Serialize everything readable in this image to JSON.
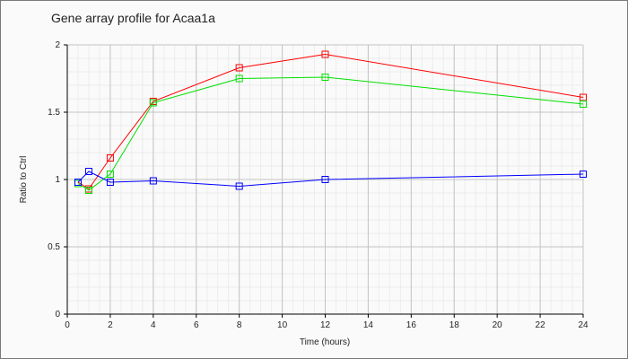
{
  "chart_data": {
    "type": "line",
    "title": "Gene array profile for Acaa1a",
    "xlabel": "Time (hours)",
    "ylabel": "Ratio to Ctrl",
    "xlim": [
      0,
      24
    ],
    "ylim": [
      0,
      2
    ],
    "xticks": [
      0,
      2,
      4,
      6,
      8,
      10,
      12,
      14,
      16,
      18,
      20,
      22,
      24
    ],
    "yticks": [
      0,
      0.5,
      1,
      1.5,
      2
    ],
    "ytick_labels": [
      "0",
      "0.5",
      "1",
      "1.5",
      "2"
    ],
    "grid": true,
    "legend": "none",
    "marker": "square",
    "x": [
      0.5,
      1,
      2,
      4,
      8,
      12,
      24
    ],
    "series": [
      {
        "color": "#ff0000",
        "values": [
          0.98,
          0.93,
          1.16,
          1.58,
          1.83,
          1.93,
          1.61
        ]
      },
      {
        "color": "#00e000",
        "values": [
          0.97,
          0.92,
          1.04,
          1.57,
          1.75,
          1.76,
          1.56
        ]
      },
      {
        "color": "#0000ff",
        "values": [
          0.98,
          1.06,
          0.98,
          0.99,
          0.95,
          1.0,
          1.04
        ]
      }
    ]
  }
}
